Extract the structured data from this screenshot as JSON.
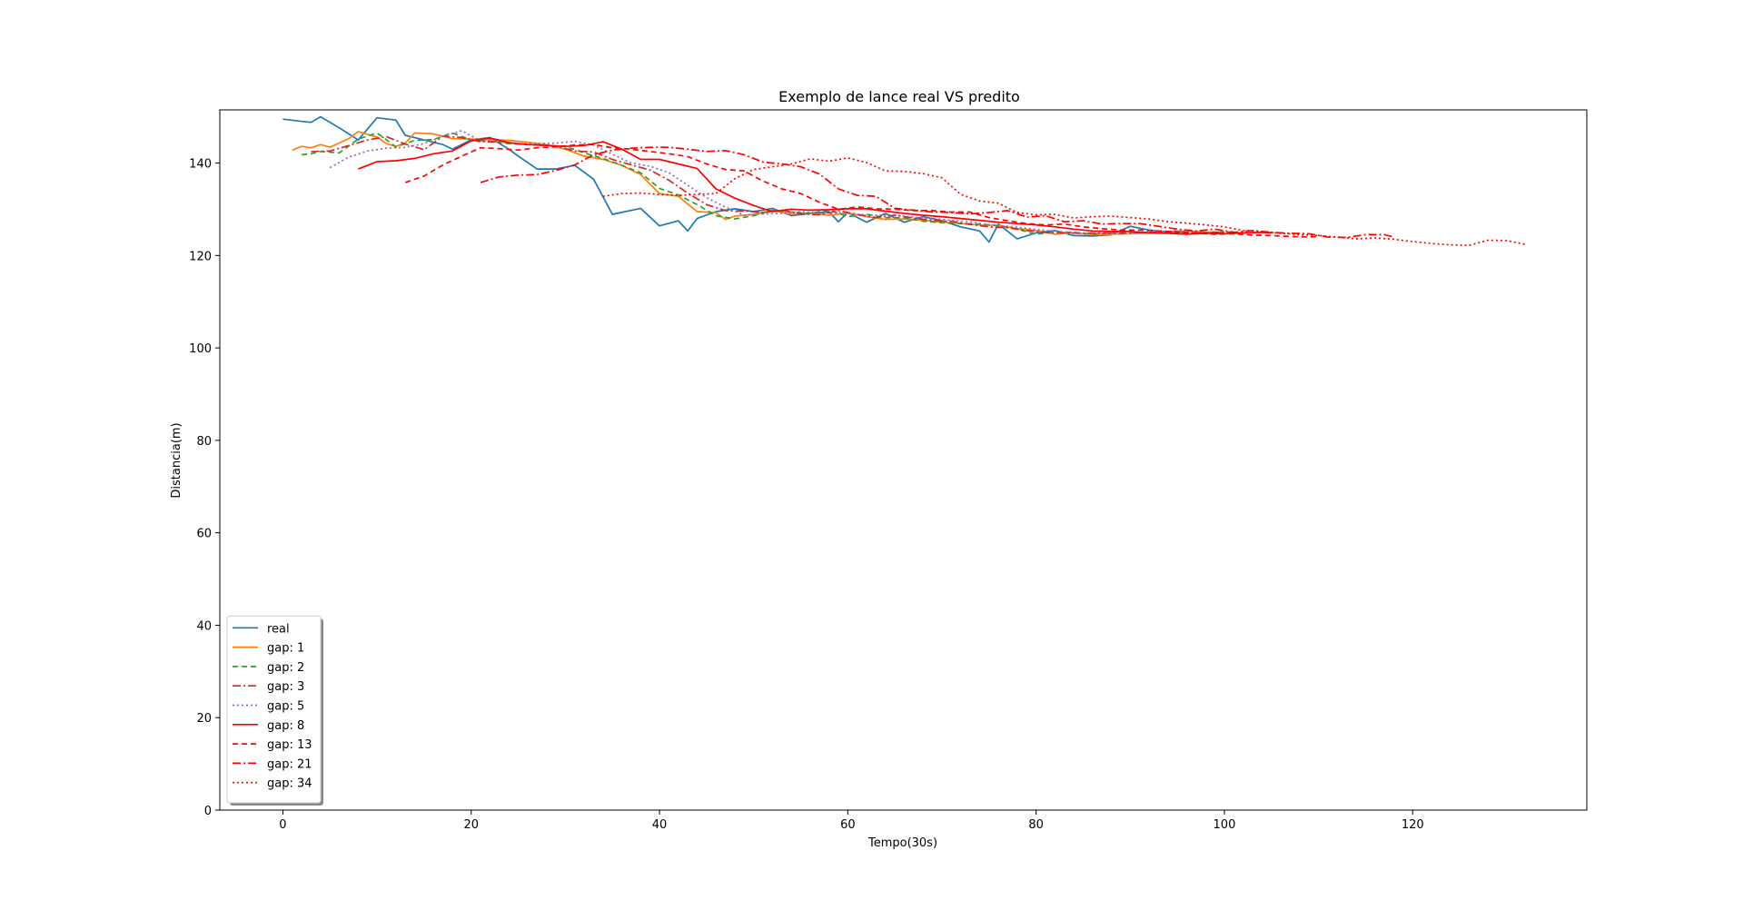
{
  "chart_data": {
    "type": "line",
    "title": "Exemplo de lance real VS predito",
    "xlabel": "Tempo(30s)",
    "ylabel": "Distancia(m)",
    "xlim": [
      -6.7,
      138.5
    ],
    "ylim": [
      0,
      151.5
    ],
    "xticks": [
      0,
      20,
      40,
      60,
      80,
      100,
      120
    ],
    "yticks": [
      0,
      20,
      40,
      60,
      80,
      100,
      120,
      140
    ],
    "grid": false,
    "legend_position": "lower-left",
    "series": [
      {
        "name": "real",
        "color": "#1f77b4",
        "dash": "solid",
        "x": [
          0,
          2,
          3,
          4,
          6,
          8,
          10,
          12,
          13,
          15,
          17,
          18,
          20,
          22,
          24,
          25,
          27,
          29,
          31,
          33,
          35,
          38,
          40,
          42,
          43,
          44,
          46,
          48,
          50,
          52,
          54,
          56,
          58,
          59,
          60,
          62,
          64,
          66,
          68,
          70,
          72,
          74,
          75,
          76,
          78,
          80,
          82,
          84,
          86,
          88,
          90,
          92,
          94,
          96,
          98,
          100
        ],
        "y": [
          149.5,
          149,
          148.8,
          150,
          147.6,
          145,
          149.8,
          149.3,
          146,
          145,
          144,
          143,
          145,
          145.5,
          143,
          141.5,
          138.7,
          138.7,
          139.5,
          136.5,
          128.9,
          130.2,
          126.4,
          127.5,
          125.3,
          128,
          129.5,
          130.1,
          129.5,
          130.2,
          128.6,
          129.1,
          129.5,
          127.3,
          129.3,
          127.2,
          129.1,
          127.2,
          128.4,
          127.5,
          126.2,
          125.3,
          122.9,
          126.8,
          123.6,
          124.9,
          125.4,
          124.3,
          124.2,
          124.5,
          126.3,
          125.5,
          125.1,
          125.3,
          124.9,
          124.8
        ]
      },
      {
        "name": "gap: 1",
        "color": "#ff7f0e",
        "dash": "solid",
        "x": [
          1,
          2,
          3,
          4,
          5,
          7,
          8,
          10,
          11,
          12,
          13,
          14,
          16,
          18,
          20,
          22,
          24,
          26,
          28,
          30,
          32,
          34,
          36,
          38,
          40,
          42,
          44,
          46,
          47,
          48,
          50,
          52,
          54,
          56,
          58,
          60,
          62,
          64,
          66,
          68,
          70,
          72,
          74,
          76,
          78,
          80,
          82,
          84,
          86,
          88,
          90,
          92,
          94,
          96,
          98,
          100
        ],
        "y": [
          142.8,
          143.6,
          143.3,
          144,
          143.4,
          145.3,
          146.8,
          145.6,
          144.2,
          143.6,
          144.3,
          146.5,
          146.3,
          145.3,
          145.2,
          145.1,
          144.9,
          144.5,
          144.0,
          143.0,
          141.5,
          140.8,
          139.5,
          137.5,
          133.4,
          132.8,
          129.5,
          129.3,
          127.8,
          128.5,
          128.9,
          129.8,
          128.9,
          129.2,
          128.7,
          129.2,
          128.4,
          127.8,
          127.9,
          127.6,
          127.2,
          126.9,
          126.6,
          126.5,
          125.8,
          125.4,
          124.6,
          124.9,
          124.5,
          124.6,
          124.7,
          124.9,
          125.0,
          125.3,
          125.1,
          125.0
        ]
      },
      {
        "name": "gap: 2",
        "color": "#2ca02c",
        "dash": "6,4",
        "x": [
          2,
          3,
          4,
          6,
          8,
          10,
          12,
          14,
          16,
          18,
          20,
          22,
          24,
          26,
          28,
          30,
          32,
          34,
          36,
          38,
          40,
          42,
          44,
          46,
          48,
          50,
          52,
          54,
          56,
          58,
          60,
          62,
          64,
          66,
          68,
          70,
          72,
          74,
          76,
          78,
          80,
          82,
          84,
          86,
          88,
          90,
          92,
          94,
          96,
          98,
          100
        ],
        "y": [
          141.8,
          142.0,
          142.5,
          142.2,
          145.2,
          146.5,
          143.5,
          144.9,
          145.1,
          146.5,
          145.0,
          144.7,
          144.2,
          144.0,
          143.8,
          143.6,
          142.2,
          141.0,
          139.5,
          137.9,
          134.5,
          133.1,
          131.0,
          128.6,
          127.9,
          128.6,
          129.7,
          129.4,
          129.1,
          129.9,
          128.4,
          128.9,
          128.2,
          128.2,
          127.4,
          127.1,
          126.9,
          126.8,
          126.4,
          125.7,
          124.6,
          125.1,
          125.0,
          124.6,
          124.9,
          125.1,
          124.9,
          125.0,
          124.9,
          125.0,
          125.1
        ]
      },
      {
        "name": "gap: 3",
        "color": "#d62728",
        "dash": "9,3,2,3",
        "x": [
          3,
          5,
          7,
          9,
          11,
          13,
          15,
          17,
          19,
          21,
          23,
          25,
          27,
          29,
          31,
          33,
          35,
          37,
          39,
          41,
          43,
          45,
          47,
          49,
          51,
          53,
          55,
          57,
          59,
          61,
          63,
          65,
          67,
          69,
          71,
          73,
          75,
          77,
          79,
          81,
          83,
          85,
          87,
          89,
          91,
          93,
          95,
          97,
          99,
          101
        ],
        "y": [
          142.5,
          142.6,
          143.8,
          145.0,
          145.7,
          144.1,
          142.9,
          145.8,
          145.5,
          144.6,
          144.6,
          144.2,
          143.9,
          143.7,
          142.6,
          142.4,
          140.8,
          139.6,
          138.5,
          136.3,
          133.5,
          131.0,
          129.7,
          129.6,
          129.3,
          129.8,
          129.0,
          128.8,
          129.7,
          128.9,
          128.2,
          128.7,
          128.1,
          127.6,
          127.4,
          126.7,
          126.2,
          126.0,
          125.4,
          125.0,
          124.9,
          124.8,
          124.9,
          124.8,
          125.0,
          125.0,
          125.1,
          124.9,
          125.0,
          125.1
        ]
      },
      {
        "name": "gap: 5",
        "color": "#9467bd",
        "dash": "2,3",
        "x": [
          5,
          7,
          9,
          11,
          13,
          15,
          17,
          19,
          21,
          23,
          25,
          27,
          29,
          31,
          33,
          35,
          37,
          39,
          41,
          43,
          45,
          47,
          49,
          51,
          53,
          55,
          57,
          59,
          61,
          63,
          65,
          67,
          69,
          71,
          73,
          75,
          77,
          79,
          81,
          83,
          85,
          87,
          89,
          91,
          93,
          95,
          97,
          99
        ],
        "y": [
          139.0,
          141.3,
          142.6,
          143.2,
          143.4,
          144.2,
          145.8,
          147.0,
          144.8,
          144.8,
          144.1,
          144.2,
          144.3,
          144.7,
          143.9,
          141.9,
          140.0,
          139.3,
          137.9,
          135.2,
          132.5,
          130.5,
          128.7,
          129.0,
          129.1,
          129.5,
          129.2,
          129.3,
          128.9,
          128.7,
          128.8,
          128.3,
          128.0,
          127.6,
          127.3,
          126.6,
          126.3,
          125.9,
          125.4,
          125.1,
          124.9,
          124.8,
          125.0,
          125.0,
          125.2,
          125.3,
          125.1,
          125.0
        ]
      },
      {
        "name": "gap: 8",
        "color": "#ff0000",
        "dash": "solid",
        "x": [
          8,
          10,
          12,
          14,
          16,
          18,
          20,
          22,
          24,
          26,
          28,
          30,
          32,
          34,
          36,
          38,
          40,
          42,
          44,
          46,
          48,
          50,
          52,
          54,
          56,
          58,
          60,
          62,
          64,
          66,
          68,
          70,
          72,
          74,
          76,
          78,
          80,
          82,
          84,
          86,
          88,
          90,
          92,
          94,
          96,
          98,
          100,
          102,
          104,
          105
        ],
        "y": [
          138.7,
          140.3,
          140.5,
          141.0,
          142.0,
          142.6,
          144.8,
          145.4,
          144.4,
          144.0,
          143.8,
          143.6,
          143.8,
          144.6,
          143.0,
          140.8,
          140.8,
          139.8,
          138.8,
          134.4,
          132.4,
          130.8,
          129.5,
          130.0,
          129.8,
          129.9,
          130.1,
          130.1,
          129.6,
          129.1,
          128.7,
          128.4,
          128.0,
          127.6,
          127.2,
          126.9,
          126.6,
          126.2,
          125.7,
          125.3,
          125.2,
          125.2,
          124.9,
          124.8,
          124.6,
          124.8,
          124.7,
          124.9,
          125.0,
          124.9
        ]
      },
      {
        "name": "gap: 13",
        "color": "#ff0000",
        "dash": "6,4",
        "x": [
          13,
          15,
          17,
          19,
          21,
          23,
          25,
          27,
          29,
          31,
          33,
          35,
          37,
          39,
          41,
          43,
          45,
          47,
          49,
          51,
          53,
          55,
          57,
          59,
          61,
          63,
          65,
          67,
          69,
          71,
          73,
          75,
          77,
          79,
          81,
          83,
          85,
          87,
          89,
          91,
          93,
          95,
          97,
          99,
          101,
          103,
          105,
          107,
          109,
          110
        ],
        "y": [
          135.8,
          137.2,
          139.6,
          141.5,
          143.3,
          143.1,
          142.8,
          143.3,
          143.5,
          143.9,
          144.0,
          143.3,
          143.0,
          142.5,
          142.0,
          141.4,
          139.8,
          138.6,
          138.3,
          136.1,
          134.4,
          133.4,
          131.5,
          130.0,
          130.5,
          130.1,
          130.0,
          129.7,
          129.7,
          129.4,
          129.4,
          128.2,
          127.5,
          126.9,
          126.6,
          126.8,
          126.2,
          125.8,
          125.5,
          125.5,
          125.3,
          125.1,
          124.8,
          124.6,
          124.7,
          124.4,
          124.3,
          124.1,
          124.0,
          124.1
        ]
      },
      {
        "name": "gap: 21",
        "color": "#ff0000",
        "dash": "9,3,2,3",
        "x": [
          21,
          23,
          25,
          27,
          29,
          31,
          33,
          35,
          37,
          39,
          41,
          43,
          45,
          47,
          49,
          51,
          53,
          55,
          57,
          59,
          61,
          63,
          65,
          67,
          69,
          71,
          73,
          75,
          77,
          79,
          81,
          83,
          85,
          87,
          89,
          91,
          93,
          95,
          97,
          99,
          101,
          103,
          105,
          107,
          109,
          111,
          113,
          115,
          117,
          118
        ],
        "y": [
          135.8,
          137.0,
          137.4,
          137.5,
          138.4,
          139.6,
          141.8,
          142.8,
          143.2,
          143.4,
          143.4,
          143.0,
          142.5,
          142.7,
          141.8,
          140.2,
          139.8,
          139.2,
          137.6,
          134.4,
          133.0,
          132.8,
          130.2,
          129.8,
          129.4,
          129.3,
          129.0,
          129.3,
          129.7,
          128.3,
          128.6,
          127.3,
          127.5,
          126.8,
          126.9,
          126.9,
          126.3,
          125.7,
          125.3,
          125.7,
          125.0,
          125.4,
          125.0,
          124.8,
          124.7,
          124.0,
          123.9,
          124.5,
          124.5,
          124.0
        ]
      },
      {
        "name": "gap: 34",
        "color": "#ff0000",
        "dash": "2,3",
        "x": [
          34,
          36,
          38,
          40,
          42,
          44,
          46,
          48,
          50,
          52,
          54,
          56,
          58,
          60,
          62,
          64,
          66,
          68,
          70,
          72,
          74,
          76,
          78,
          80,
          82,
          84,
          86,
          88,
          90,
          92,
          94,
          96,
          98,
          100,
          102,
          104,
          106,
          108,
          110,
          112,
          114,
          116,
          118,
          120,
          122,
          124,
          126,
          128,
          130,
          132
        ],
        "y": [
          132.8,
          133.4,
          133.5,
          133.2,
          133.0,
          133.2,
          133.4,
          136.6,
          138.6,
          139.2,
          139.8,
          140.9,
          140.4,
          141.1,
          140.1,
          138.3,
          138.2,
          137.7,
          136.8,
          133.2,
          131.8,
          131.3,
          129.3,
          128.8,
          128.9,
          128.1,
          128.4,
          128.5,
          128.2,
          127.9,
          127.3,
          127.0,
          126.6,
          126.2,
          125.4,
          125.2,
          124.8,
          124.5,
          124.3,
          124.0,
          123.6,
          123.8,
          123.5,
          123.0,
          122.6,
          122.3,
          122.2,
          123.3,
          123.2,
          122.4
        ]
      }
    ]
  }
}
